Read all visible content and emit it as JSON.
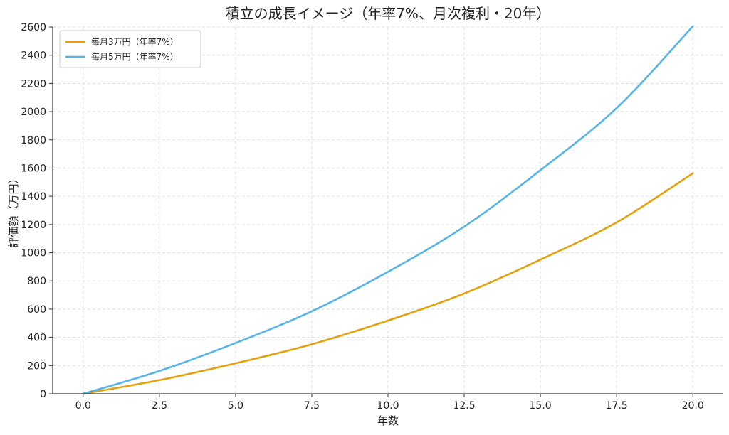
{
  "chart_data": {
    "type": "line",
    "title": "積立の成長イメージ（年率7%、月次複利・20年）",
    "xlabel": "年数",
    "ylabel": "評価額（万円）",
    "xlim": [
      -1,
      21
    ],
    "ylim": [
      0,
      2600
    ],
    "xticks": [
      0.0,
      2.5,
      5.0,
      7.5,
      10.0,
      12.5,
      15.0,
      17.5,
      20.0
    ],
    "xtick_labels": [
      "0.0",
      "2.5",
      "5.0",
      "7.5",
      "10.0",
      "12.5",
      "15.0",
      "17.5",
      "20.0"
    ],
    "yticks": [
      0,
      200,
      400,
      600,
      800,
      1000,
      1200,
      1400,
      1600,
      1800,
      2000,
      2200,
      2400,
      2600
    ],
    "ytick_labels": [
      "0",
      "200",
      "400",
      "600",
      "800",
      "1000",
      "1200",
      "1400",
      "1600",
      "1800",
      "2000",
      "2200",
      "2400",
      "2600"
    ],
    "grid": true,
    "legend_position": "top-left",
    "x": [
      0,
      2.5,
      5,
      7.5,
      10,
      12.5,
      15,
      17.5,
      20
    ],
    "series": [
      {
        "name": "毎月3万円（年率7%）",
        "color": "#E5A00D",
        "values": [
          0,
          97,
          216,
          351,
          519,
          711,
          951,
          1215,
          1563
        ]
      },
      {
        "name": "毎月5万円（年率7%）",
        "color": "#56B4E9",
        "values": [
          0,
          162,
          360,
          585,
          865,
          1185,
          1585,
          2025,
          2605
        ]
      }
    ]
  }
}
